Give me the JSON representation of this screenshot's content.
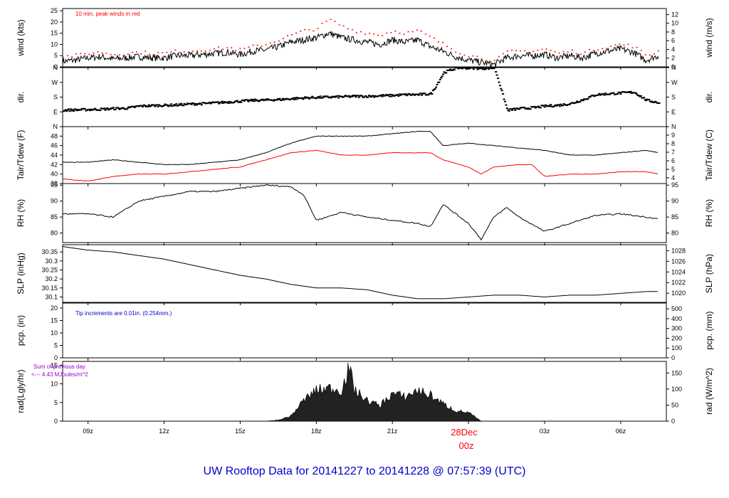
{
  "figure": {
    "footer_title": "UW Rooftop Data for 20141227  to  20141228 @ 07:57:39  (UTC)",
    "date_label": "28Dec",
    "date_sublabel": "00z",
    "colors": {
      "primary": "#000000",
      "secondary": "#ff0000",
      "footer": "#0000cc",
      "note_purple": "#9900cc"
    }
  },
  "chart_data": [
    {
      "id": "wind",
      "type": "line",
      "ylabel": "wind (kts)",
      "ylabel_right": "wind (m/s)",
      "ylim": [
        0,
        26
      ],
      "yticks": [
        0,
        5,
        10,
        15,
        20,
        25
      ],
      "right_scale": 0.5144,
      "yticks_right": [
        0,
        2,
        4,
        6,
        8,
        10,
        12
      ],
      "annotation": "10 min. peak winds in red",
      "series": [
        {
          "role": "mean",
          "x": [
            8,
            8.5,
            9,
            9.5,
            10,
            10.5,
            11,
            11.5,
            12,
            12.5,
            13,
            13.5,
            14,
            14.5,
            15,
            15.5,
            16,
            16.5,
            17,
            17.5,
            18,
            18.5,
            19,
            19.5,
            20,
            20.5,
            21,
            21.5,
            22,
            22.5,
            23,
            23.5,
            24,
            24.5,
            25,
            25.5,
            26,
            26.5,
            27,
            27.5,
            28,
            28.5,
            29,
            29.5,
            30,
            30.5,
            31,
            31.5
          ],
          "y": [
            2.5,
            3,
            4,
            4.5,
            3.5,
            4,
            4.5,
            4,
            4,
            5,
            5,
            5.5,
            6,
            6.5,
            5.5,
            7,
            7.5,
            9,
            11,
            12,
            13,
            15,
            13,
            12,
            11,
            10,
            12,
            11,
            12,
            9,
            7,
            4.5,
            3,
            2,
            1,
            4,
            5,
            5,
            5.5,
            4,
            5,
            4,
            6,
            7,
            8,
            6.5,
            3,
            5
          ]
        },
        {
          "role": "peak",
          "x": [
            8,
            8.5,
            9,
            9.5,
            10,
            10.5,
            11,
            11.5,
            12,
            12.5,
            13,
            13.5,
            14,
            14.5,
            15,
            15.5,
            16,
            16.5,
            17,
            17.5,
            18,
            18.5,
            19,
            19.5,
            20,
            20.5,
            21,
            21.5,
            22,
            22.5,
            23,
            23.5,
            24,
            24.5,
            25,
            25.5,
            26,
            26.5,
            27,
            27.5,
            28,
            28.5,
            29,
            29.5,
            30,
            30.5,
            31,
            31.5
          ],
          "y": [
            4.5,
            5,
            6,
            6.5,
            5.5,
            6,
            6.5,
            6,
            6,
            7,
            7,
            7.5,
            8,
            8.5,
            7.5,
            9,
            10,
            12,
            14,
            16,
            17,
            21,
            18,
            16,
            15,
            14,
            16,
            15,
            16,
            13,
            10,
            7,
            5,
            4,
            2.5,
            6.5,
            7,
            7,
            8,
            6,
            7,
            6,
            8,
            9,
            10,
            9,
            5,
            7
          ]
        }
      ]
    },
    {
      "id": "dir",
      "type": "scatter",
      "ylabel": "dir.",
      "ylabel_right": "dir.",
      "ylim": [
        0,
        360
      ],
      "ytick_labels": [
        "N",
        "E",
        "S",
        "W",
        "N"
      ],
      "yticks": [
        0,
        90,
        180,
        270,
        360
      ],
      "series": [
        {
          "role": "direction",
          "x": [
            8,
            8.5,
            9,
            9.5,
            10,
            10.5,
            11,
            11.5,
            12,
            12.5,
            13,
            13.5,
            14,
            14.5,
            15,
            15.5,
            16,
            16.5,
            17,
            17.5,
            18,
            18.5,
            19,
            19.5,
            20,
            20.5,
            21,
            21.5,
            22,
            22.5,
            23,
            23.5,
            24,
            24.5,
            25,
            25.5,
            26,
            26.5,
            27,
            27.5,
            28,
            28.5,
            29,
            29.5,
            30,
            30.5,
            31,
            31.5
          ],
          "y": [
            100,
            102,
            104,
            106,
            110,
            112,
            125,
            128,
            130,
            132,
            138,
            140,
            145,
            150,
            155,
            160,
            162,
            165,
            170,
            175,
            178,
            180,
            182,
            185,
            185,
            188,
            190,
            195,
            195,
            200,
            330,
            358,
            358,
            355,
            358,
            100,
            110,
            115,
            125,
            130,
            140,
            165,
            195,
            200,
            205,
            210,
            160,
            145
          ]
        }
      ]
    },
    {
      "id": "temp",
      "type": "line",
      "ylabel": "Tair/Tdew (F)",
      "ylabel_right": "Tair/Tdew (C)",
      "ylim": [
        38,
        50
      ],
      "yticks": [
        38,
        40,
        42,
        44,
        46,
        48
      ],
      "yticks_right": [
        4,
        5,
        6,
        7,
        8,
        9
      ],
      "series": [
        {
          "role": "air_temperature",
          "x": [
            8,
            9,
            10,
            11,
            12,
            13,
            14,
            15,
            16,
            17,
            18,
            19,
            20,
            21,
            22,
            22.5,
            23,
            24,
            25,
            26,
            27,
            28,
            29,
            30,
            31,
            31.5
          ],
          "y": [
            42.5,
            42.5,
            43,
            42.5,
            42,
            42,
            42.5,
            43,
            44.5,
            46.5,
            48,
            48,
            48,
            48.5,
            49,
            49,
            46,
            46.5,
            46,
            45.5,
            45,
            44,
            44,
            44.5,
            45,
            44.5
          ]
        },
        {
          "role": "dew_point",
          "x": [
            8,
            9,
            10,
            11,
            12,
            13,
            14,
            15,
            16,
            17,
            18,
            19,
            20,
            21,
            22,
            22.5,
            23,
            24,
            24.5,
            25,
            26,
            26.5,
            27,
            28,
            29,
            30,
            31,
            31.5
          ],
          "y": [
            39,
            38.5,
            39.5,
            40,
            40,
            40.5,
            41,
            41.5,
            43,
            44.5,
            45,
            44,
            44,
            44.5,
            44.5,
            44.5,
            43,
            41.5,
            40,
            41.5,
            42,
            42,
            39.5,
            40,
            40,
            40.5,
            40.5,
            40
          ]
        }
      ]
    },
    {
      "id": "rh",
      "type": "line",
      "ylabel": "RH (%)",
      "ylabel_right": "RH (%)",
      "ylim": [
        77,
        95.5
      ],
      "yticks": [
        80,
        85,
        90,
        95
      ],
      "series": [
        {
          "role": "relative_humidity",
          "x": [
            8,
            9,
            10,
            11,
            12,
            13,
            14,
            15,
            16,
            17,
            17.5,
            18,
            19,
            20,
            21,
            22,
            22.5,
            23,
            24,
            24.5,
            25,
            25.5,
            26,
            27,
            28,
            29,
            30,
            31,
            31.5
          ],
          "y": [
            86,
            86,
            85,
            90,
            91.5,
            93,
            93,
            94,
            95,
            94.5,
            92,
            84,
            86.5,
            85,
            84,
            83,
            82,
            89,
            83,
            78,
            85,
            88,
            85,
            80.5,
            83,
            85.5,
            86,
            85,
            84.5
          ]
        }
      ]
    },
    {
      "id": "slp",
      "type": "line",
      "ylabel": "SLP (inHg)",
      "ylabel_right": "SLP (hPa)",
      "ylim": [
        30.07,
        30.39
      ],
      "yticks": [
        30.1,
        30.15,
        30.2,
        30.25,
        30.3,
        30.35
      ],
      "right_ticks": [
        1020,
        1022,
        1024,
        1026,
        1028
      ],
      "series": [
        {
          "role": "sea_level_pressure",
          "x": [
            8,
            9,
            10,
            11,
            12,
            13,
            14,
            15,
            16,
            17,
            18,
            19,
            20,
            21,
            22,
            23,
            24,
            25,
            26,
            27,
            28,
            29,
            30,
            31,
            31.5
          ],
          "y": [
            30.38,
            30.36,
            30.35,
            30.33,
            30.31,
            30.28,
            30.25,
            30.22,
            30.2,
            30.17,
            30.15,
            30.15,
            30.14,
            30.11,
            30.09,
            30.09,
            30.1,
            30.11,
            30.11,
            30.1,
            30.11,
            30.11,
            30.12,
            30.13,
            30.13
          ]
        }
      ]
    },
    {
      "id": "pcp",
      "type": "line",
      "ylabel": "pcp. (in)",
      "ylabel_right": "pcp. (mm)",
      "ylim": [
        0,
        22
      ],
      "yticks": [
        0,
        5,
        10,
        15,
        20
      ],
      "right_ticks": [
        0,
        100,
        200,
        300,
        400,
        500
      ],
      "annotation": "Tip increments are 0.01in. (0.254mm.)",
      "series": [
        {
          "role": "precipitation",
          "x": [
            8,
            31.5
          ],
          "y": [
            0,
            0
          ]
        }
      ]
    },
    {
      "id": "rad",
      "type": "area",
      "ylabel": "rad(Lgly/hr)",
      "ylabel_right": "rad (W/m^2)",
      "ylim": [
        0,
        16
      ],
      "yticks": [
        0,
        5,
        10,
        15
      ],
      "right_ticks": [
        0,
        50,
        100,
        150
      ],
      "annotation_line1": "Sum of previous day",
      "annotation_line2": "<--- 4.43 MJoules/m^2",
      "series": [
        {
          "role": "solar_radiation",
          "x": [
            16,
            16.5,
            17,
            17.5,
            18,
            18.5,
            19,
            19.3,
            19.5,
            20,
            20.5,
            21,
            21.5,
            22,
            22.5,
            23,
            23.5,
            24,
            24.5
          ],
          "y": [
            0,
            0.3,
            1.5,
            6,
            9,
            9.5,
            9,
            15.5,
            9,
            6,
            4.5,
            8,
            7,
            9,
            7.5,
            5,
            3,
            2.5,
            0
          ]
        }
      ]
    }
  ],
  "x_axis": {
    "tick_labels": [
      "09z",
      "12z",
      "15z",
      "18z",
      "21z",
      "03z",
      "06z"
    ],
    "tick_hours": [
      9,
      12,
      15,
      18,
      21,
      27,
      30
    ],
    "date_tick_hour": 24,
    "xlim": [
      8,
      31.8
    ]
  }
}
